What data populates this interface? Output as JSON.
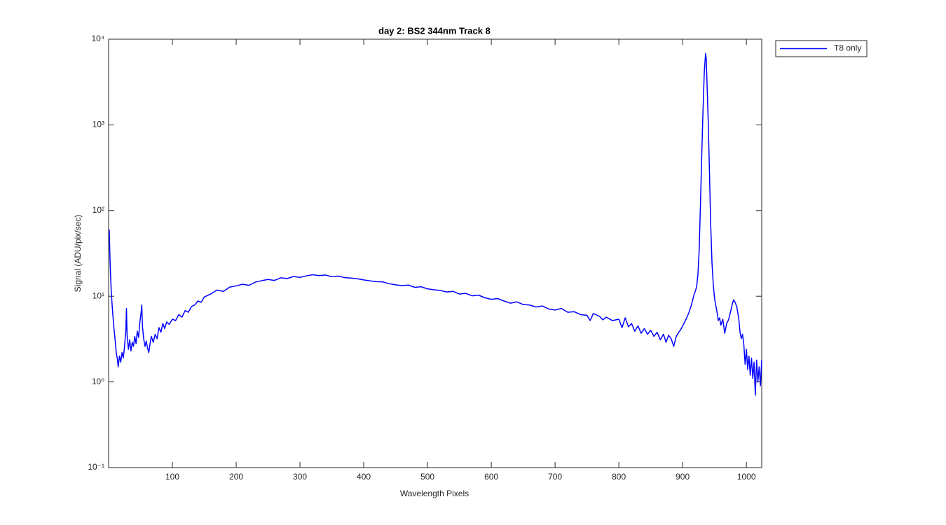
{
  "chart_data": {
    "type": "line",
    "title": "day 2: BS2  344nm  Track 8",
    "x_label": "Wavelength Pixels",
    "y_label": "Signal (ADU/pix/sec)",
    "y_scale": "log",
    "grid": false,
    "legend": "northeastoutside",
    "xlim": [
      0,
      1024
    ],
    "ylim": [
      0.1,
      10000
    ],
    "xticks": [
      100,
      200,
      300,
      400,
      500,
      600,
      700,
      800,
      900,
      1000
    ],
    "yticks": [
      {
        "value": 0.1,
        "label": "10⁻¹"
      },
      {
        "value": 1,
        "label": "10⁰"
      },
      {
        "value": 10,
        "label": "10¹"
      },
      {
        "value": 100,
        "label": "10²"
      },
      {
        "value": 1000,
        "label": "10³"
      },
      {
        "value": 10000,
        "label": "10⁴"
      }
    ],
    "x": [
      1,
      2,
      3,
      4,
      5,
      6,
      8,
      10,
      12,
      14,
      15,
      17,
      19,
      21,
      23,
      25,
      27,
      28,
      29,
      31,
      33,
      35,
      37,
      39,
      41,
      43,
      45,
      47,
      49,
      51,
      52,
      53,
      55,
      57,
      59,
      61,
      63,
      65,
      67,
      70,
      73,
      76,
      79,
      82,
      85,
      88,
      91,
      95,
      100,
      105,
      110,
      115,
      120,
      125,
      130,
      135,
      140,
      145,
      150,
      160,
      170,
      180,
      190,
      200,
      210,
      220,
      230,
      240,
      250,
      260,
      270,
      280,
      290,
      300,
      310,
      320,
      330,
      340,
      350,
      360,
      370,
      380,
      390,
      400,
      410,
      420,
      430,
      440,
      450,
      460,
      470,
      480,
      490,
      500,
      510,
      520,
      530,
      540,
      550,
      560,
      570,
      580,
      590,
      600,
      610,
      620,
      630,
      640,
      650,
      660,
      670,
      680,
      690,
      700,
      710,
      720,
      730,
      740,
      750,
      755,
      760,
      770,
      775,
      780,
      790,
      800,
      805,
      810,
      815,
      820,
      825,
      830,
      835,
      840,
      845,
      850,
      855,
      860,
      865,
      870,
      874,
      878,
      882,
      886,
      890,
      894,
      898,
      902,
      906,
      910,
      914,
      918,
      920,
      922,
      924,
      926,
      928,
      930,
      932,
      934,
      936,
      937,
      938,
      940,
      942,
      944,
      946,
      948,
      950,
      952,
      954,
      956,
      958,
      960,
      963,
      966,
      969,
      972,
      975,
      978,
      980,
      982,
      985,
      988,
      990,
      992,
      994,
      996,
      998,
      1000,
      1002,
      1004,
      1006,
      1008,
      1010,
      1012,
      1014,
      1016,
      1018,
      1020,
      1022,
      1024
    ],
    "series": [
      {
        "name": "T8 only",
        "color": "#0000ff",
        "values": [
          60,
          30,
          18,
          12,
          9,
          7,
          4.5,
          3.2,
          2.2,
          1.8,
          1.5,
          2,
          1.7,
          2.2,
          1.9,
          2.6,
          4,
          7.2,
          3.5,
          2.4,
          3.1,
          2.3,
          2.9,
          2.6,
          3.4,
          2.8,
          3.9,
          3.3,
          5,
          6.5,
          7.9,
          4.5,
          3.2,
          2.6,
          3,
          2.5,
          2.2,
          2.8,
          3.4,
          2.9,
          3.6,
          3.2,
          4.3,
          3.8,
          4.8,
          4.2,
          5,
          4.7,
          5.4,
          5.2,
          6.1,
          5.7,
          6.8,
          6.5,
          7.6,
          7.9,
          8.8,
          8.5,
          9.8,
          10.6,
          11.8,
          11.4,
          12.8,
          13.2,
          13.8,
          13.4,
          14.6,
          15.2,
          15.7,
          15.3,
          16.4,
          16.1,
          17,
          16.6,
          17.3,
          17.8,
          17.4,
          17.7,
          16.9,
          17.2,
          16.5,
          16.3,
          16,
          15.5,
          15.1,
          14.8,
          14.7,
          14,
          13.6,
          13.3,
          13.5,
          12.7,
          12.9,
          12.2,
          11.9,
          11.7,
          11.2,
          11.4,
          10.6,
          10.8,
          10.1,
          10.3,
          9.6,
          9.2,
          9.4,
          8.8,
          8.3,
          8.6,
          8,
          7.9,
          7.5,
          7.7,
          7.1,
          6.9,
          7.2,
          6.5,
          6.6,
          6.1,
          6,
          5.2,
          6.3,
          5.8,
          5.3,
          5.7,
          5.2,
          5.4,
          4.3,
          5.6,
          4.4,
          4.8,
          3.9,
          4.5,
          3.7,
          4.2,
          3.6,
          4,
          3.4,
          3.8,
          3.1,
          3.6,
          2.9,
          3.5,
          3.2,
          2.6,
          3.4,
          3.8,
          4.2,
          4.8,
          5.5,
          6.5,
          8,
          10.5,
          11.5,
          13,
          18,
          35,
          120,
          450,
          1500,
          4200,
          6800,
          6000,
          3500,
          1200,
          300,
          70,
          25,
          14,
          9.5,
          7.8,
          6.5,
          5.2,
          5.6,
          4.6,
          5.4,
          3.7,
          4.8,
          5.3,
          6.5,
          8.2,
          9.1,
          8.6,
          7.5,
          5.5,
          3.8,
          3.2,
          3.6,
          2.7,
          1.6,
          2.4,
          1.4,
          2,
          1.2,
          1.9,
          1.1,
          1.7,
          0.7,
          1.8,
          1,
          1.5,
          0.9,
          1.8
        ]
      }
    ]
  }
}
